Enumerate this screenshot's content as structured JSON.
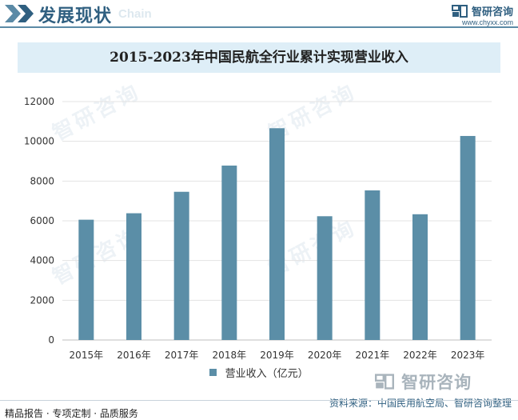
{
  "header": {
    "title": "发展现状",
    "subtitle": "Chain",
    "brand_name": "智研咨询",
    "brand_url": "www.chyxx.com"
  },
  "chart_data": {
    "type": "bar",
    "title": "2015-2023年中国民航全行业累计实现营业收入",
    "categories": [
      "2015年",
      "2016年",
      "2017年",
      "2018年",
      "2019年",
      "2020年",
      "2021年",
      "2022年",
      "2023年"
    ],
    "series": [
      {
        "name": "营业收入（亿元）",
        "values": [
          6055,
          6380,
          7460,
          8780,
          10660,
          6230,
          7530,
          6330,
          10270
        ]
      }
    ],
    "yticks": [
      0,
      2000,
      4000,
      6000,
      8000,
      10000,
      12000
    ],
    "ylim": [
      0,
      12000
    ],
    "grid": true,
    "legend": "bottom",
    "bar_color": "#5b8ea7",
    "xlabel": "",
    "ylabel": ""
  },
  "footer": {
    "left": "精品报告 · 专项定制 · 品质服务",
    "source": "资料来源：中国民用航空局、智研咨询整理",
    "brand_name": "智研咨询"
  }
}
